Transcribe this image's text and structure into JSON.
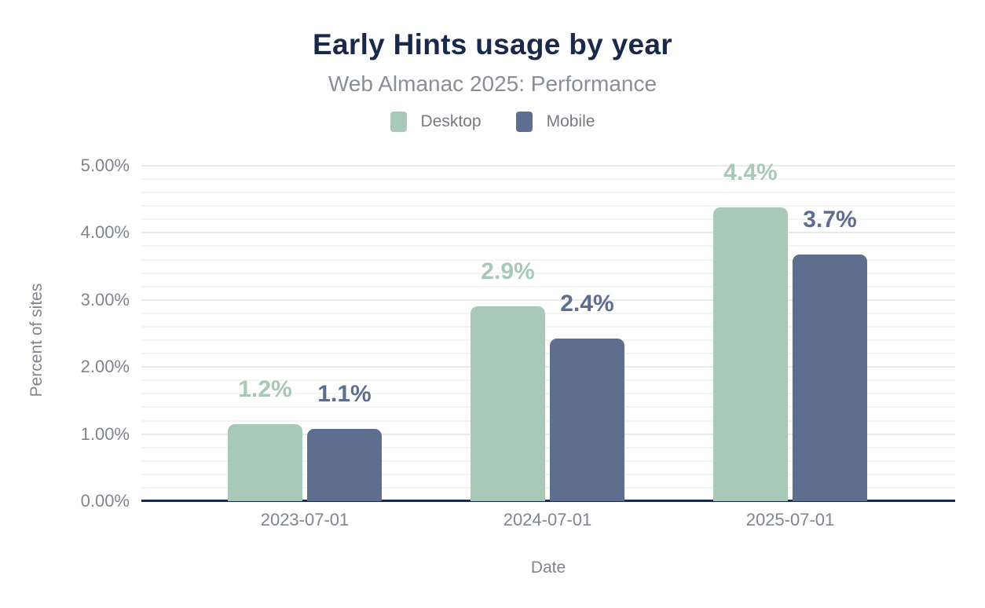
{
  "chart_data": {
    "type": "bar",
    "title": "Early Hints usage by year",
    "subtitle": "Web Almanac 2025: Performance",
    "categories": [
      "2023-07-01",
      "2024-07-01",
      "2025-07-01"
    ],
    "series": [
      {
        "name": "Desktop",
        "color": "#a8c9b6",
        "values": [
          1.15,
          2.9,
          4.38
        ],
        "labels": [
          "1.2%",
          "2.9%",
          "4.4%"
        ]
      },
      {
        "name": "Mobile",
        "color": "#5d6e8e",
        "values": [
          1.08,
          2.42,
          3.68
        ],
        "labels": [
          "1.1%",
          "2.4%",
          "3.7%"
        ]
      }
    ],
    "xlabel": "Date",
    "ylabel": "Percent of sites",
    "ylim": [
      0,
      5
    ],
    "ytick_labels": [
      "0.00%",
      "1.00%",
      "2.00%",
      "3.00%",
      "4.00%",
      "5.00%"
    ],
    "y_major_step": 1.0,
    "y_minor_step": 0.2,
    "grid": true,
    "legend_position": "top"
  },
  "colors": {
    "background": "#ffffff",
    "title": "#1a294a",
    "subtitle": "#8a8e95",
    "axis_line": "#1b2b4a",
    "tick_label": "#80858c",
    "grid_major": "#e9e9eb",
    "grid_minor": "#f4f4f5"
  }
}
